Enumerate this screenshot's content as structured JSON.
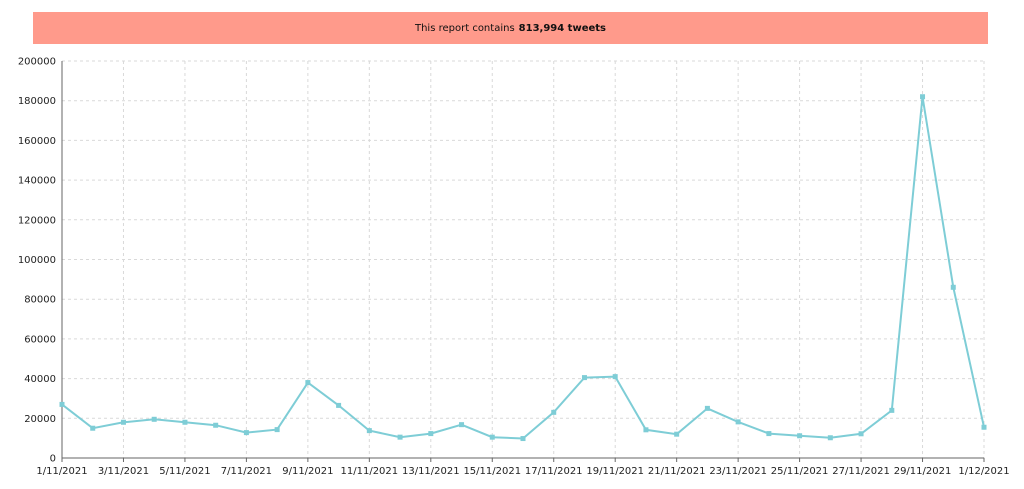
{
  "banner": {
    "prefix": "This report contains",
    "count": "813,994 tweets",
    "background": "#ff9a8b"
  },
  "chart_data": {
    "type": "line",
    "title": "",
    "xlabel": "",
    "ylabel": "",
    "ylim": [
      0,
      200000
    ],
    "yticks": [
      "0",
      "20000",
      "40000",
      "60000",
      "80000",
      "100000",
      "120000",
      "140000",
      "160000",
      "180000",
      "200000"
    ],
    "xtick_labels": [
      "1/11/2021",
      "3/11/2021",
      "5/11/2021",
      "7/11/2021",
      "9/11/2021",
      "11/11/2021",
      "13/11/2021",
      "15/11/2021",
      "17/11/2021",
      "19/11/2021",
      "21/11/2021",
      "23/11/2021",
      "25/11/2021",
      "27/11/2021",
      "29/11/2021",
      "1/12/2021"
    ],
    "x": [
      "1/11/2021",
      "2/11/2021",
      "3/11/2021",
      "4/11/2021",
      "5/11/2021",
      "6/11/2021",
      "7/11/2021",
      "8/11/2021",
      "9/11/2021",
      "10/11/2021",
      "11/11/2021",
      "12/11/2021",
      "13/11/2021",
      "14/11/2021",
      "15/11/2021",
      "16/11/2021",
      "17/11/2021",
      "18/11/2021",
      "19/11/2021",
      "20/11/2021",
      "21/11/2021",
      "22/11/2021",
      "23/11/2021",
      "24/11/2021",
      "25/11/2021",
      "26/11/2021",
      "27/11/2021",
      "28/11/2021",
      "29/11/2021",
      "30/11/2021",
      "1/12/2021"
    ],
    "series": [
      {
        "values": [
          27000,
          15000,
          18000,
          19500,
          18000,
          16500,
          12800,
          14300,
          38000,
          26500,
          13800,
          10500,
          12300,
          16800,
          10500,
          9800,
          23000,
          40500,
          41000,
          14200,
          12000,
          25000,
          18200,
          12300,
          11200,
          10200,
          12200,
          24000,
          182000,
          86000,
          15500
        ],
        "color": "#7ecdd6"
      }
    ],
    "grid": true,
    "legend": "none"
  }
}
